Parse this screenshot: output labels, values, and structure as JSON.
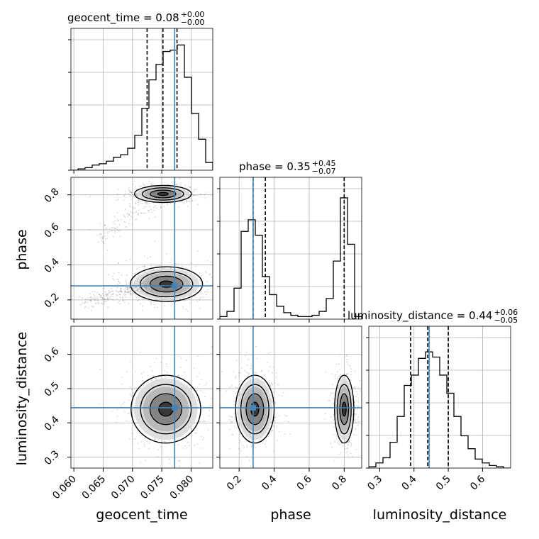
{
  "chart_data": {
    "type": "corner",
    "params": [
      "geocent_time",
      "phase",
      "luminosity_distance"
    ],
    "axis_labels": {
      "x": [
        "geocent_time",
        "phase",
        "luminosity_distance"
      ],
      "y": [
        "phase",
        "luminosity_distance"
      ]
    },
    "titles": [
      {
        "name": "geocent_time",
        "text": "geocent_time = 0.08",
        "sup": "+0.00",
        "sub": "−0.00"
      },
      {
        "name": "phase",
        "text": "phase = 0.35",
        "sup": "+0.45",
        "sub": "−0.07"
      },
      {
        "name": "luminosity_distance",
        "text": "luminosity_distance = 0.44",
        "sup": "+0.06",
        "sub": "−0.05"
      }
    ],
    "ranges": {
      "geocent_time": [
        0.0595,
        0.0837
      ],
      "phase": [
        0.09,
        0.9
      ],
      "luminosity_distance": [
        0.268,
        0.682
      ]
    },
    "ticks": {
      "geocent_time": {
        "values": [
          0.06,
          0.065,
          0.07,
          0.075,
          0.08
        ],
        "labels": [
          "0.060",
          "0.065",
          "0.070",
          "0.075",
          "0.080"
        ]
      },
      "phase": {
        "values": [
          0.2,
          0.4,
          0.6,
          0.8
        ],
        "labels": [
          "0.2",
          "0.4",
          "0.6",
          "0.8"
        ]
      },
      "luminosity_distance": {
        "values": [
          0.3,
          0.4,
          0.5,
          0.6
        ],
        "labels": [
          "0.3",
          "0.4",
          "0.5",
          "0.6"
        ]
      }
    },
    "truths": {
      "geocent_time": 0.0772,
      "phase": 0.28,
      "luminosity_distance": 0.444
    },
    "quantiles": {
      "geocent_time": [
        0.0725,
        0.0752,
        0.0776
      ],
      "phase": [
        0.28,
        0.35,
        0.8
      ],
      "luminosity_distance": [
        0.39,
        0.44,
        0.5
      ]
    },
    "histograms": {
      "geocent_time": {
        "edges_start": 0.0595,
        "bin_width": 0.00121,
        "counts": [
          0,
          0.01,
          0.02,
          0.04,
          0.05,
          0.07,
          0.1,
          0.12,
          0.17,
          0.27,
          0.48,
          0.7,
          0.82,
          0.92,
          0.93,
          0.97,
          0.72,
          0.44,
          0.24,
          0.06
        ]
      },
      "phase": {
        "edges_start": 0.09,
        "bin_width": 0.0405,
        "counts": [
          0.02,
          0.06,
          0.24,
          0.68,
          0.77,
          0.65,
          0.33,
          0.19,
          0.1,
          0.05,
          0.03,
          0.02,
          0.02,
          0.03,
          0.06,
          0.16,
          0.45,
          0.94,
          0.58,
          0.02
        ]
      },
      "luminosity_distance": {
        "edges_start": 0.268,
        "bin_width": 0.0207,
        "counts": [
          0.01,
          0.04,
          0.08,
          0.2,
          0.4,
          0.64,
          0.72,
          0.85,
          0.9,
          0.86,
          0.72,
          0.58,
          0.4,
          0.25,
          0.15,
          0.07,
          0.04,
          0.02,
          0.01,
          0.0
        ]
      }
    },
    "contour_clusters": [
      {
        "pair": [
          "geocent_time",
          "phase"
        ],
        "mode": [
          0.0752,
          0.805
        ],
        "spread": [
          0.0022,
          0.022
        ],
        "levels": [
          0.4,
          1.0,
          1.6,
          2.2
        ]
      },
      {
        "pair": [
          "geocent_time",
          "phase"
        ],
        "mode": [
          0.0758,
          0.29
        ],
        "spread": [
          0.0028,
          0.045
        ],
        "levels": [
          0.4,
          1.0,
          1.6,
          2.2
        ]
      },
      {
        "pair": [
          "geocent_time",
          "luminosity_distance"
        ],
        "mode": [
          0.0757,
          0.44
        ],
        "spread": [
          0.0027,
          0.045
        ],
        "levels": [
          0.45,
          1.0,
          1.6,
          2.2
        ]
      },
      {
        "pair": [
          "phase",
          "luminosity_distance"
        ],
        "mode": [
          0.29,
          0.44
        ],
        "spread": [
          0.05,
          0.045
        ],
        "levels": [
          0.45,
          1.0,
          1.6,
          2.2
        ]
      },
      {
        "pair": [
          "phase",
          "luminosity_distance"
        ],
        "mode": [
          0.8,
          0.44
        ],
        "spread": [
          0.025,
          0.045
        ],
        "levels": [
          0.45,
          1.0,
          1.6,
          2.2
        ]
      }
    ],
    "grid": true,
    "colors": {
      "truth": "#4682b4",
      "hist": "#000000",
      "grid": "#b0b0b0",
      "points": "#888888"
    }
  }
}
